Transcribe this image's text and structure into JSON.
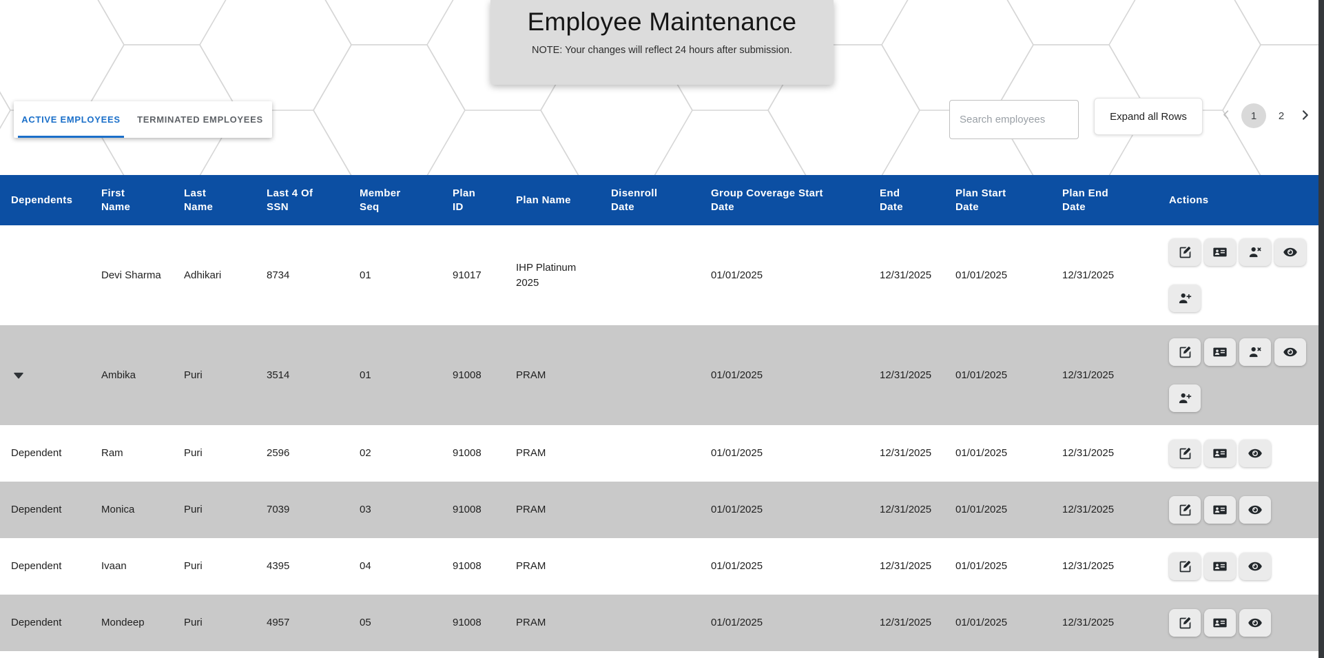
{
  "header": {
    "title": "Employee Maintenance",
    "note": "NOTE: Your changes will reflect 24 hours after submission."
  },
  "tabs": [
    {
      "label": "ACTIVE EMPLOYEES",
      "active": true
    },
    {
      "label": "TERMINATED EMPLOYEES",
      "active": false
    }
  ],
  "toolbar": {
    "search_placeholder": "Search employees",
    "expand_button_label": "Expand all Rows"
  },
  "pagination": {
    "pages": [
      "1",
      "2"
    ],
    "current_page": "1",
    "prev_icon": "chevron-left-icon",
    "next_icon": "chevron-right-icon"
  },
  "colors": {
    "header_blue": "#0c4fa3",
    "tab_active_blue": "#1a6fc9",
    "row_shade_gray": "#c9c9c9",
    "hero_card_gray": "#dcdcdc",
    "icon_dark": "#23282c",
    "scrollbar_dark": "#35383b"
  },
  "table": {
    "columns": [
      {
        "id": "dependents",
        "label": "Dependents"
      },
      {
        "id": "first_name",
        "label": "First\nName"
      },
      {
        "id": "last_name",
        "label": "Last\nName"
      },
      {
        "id": "ssn_last4",
        "label": "Last 4 Of\nSSN"
      },
      {
        "id": "member_seq",
        "label": "Member\nSeq"
      },
      {
        "id": "plan_id",
        "label": "Plan\nID"
      },
      {
        "id": "plan_name",
        "label": "Plan Name"
      },
      {
        "id": "disenroll_date",
        "label": "Disenroll\nDate"
      },
      {
        "id": "group_coverage_start_date",
        "label": "Group Coverage Start\nDate"
      },
      {
        "id": "end_date",
        "label": "End\nDate"
      },
      {
        "id": "plan_start_date",
        "label": "Plan Start\nDate"
      },
      {
        "id": "plan_end_date",
        "label": "Plan End\nDate"
      },
      {
        "id": "actions",
        "label": "Actions"
      }
    ],
    "rows": [
      {
        "kind": "employee",
        "shaded": false,
        "expanded": false,
        "cells": {
          "dependents": "",
          "first_name": "Devi Sharma",
          "last_name": "Adhikari",
          "ssn_last4": "8734",
          "member_seq": "01",
          "plan_id": "91017",
          "plan_name": "IHP Platinum 2025",
          "disenroll_date": "",
          "group_coverage_start_date": "01/01/2025",
          "end_date": "12/31/2025",
          "plan_start_date": "01/01/2025",
          "plan_end_date": "12/31/2025"
        },
        "actions": [
          "edit",
          "id-card",
          "remove-person",
          "view",
          "add-person"
        ]
      },
      {
        "kind": "employee",
        "shaded": true,
        "expanded": true,
        "cells": {
          "dependents": "",
          "first_name": "Ambika",
          "last_name": "Puri",
          "ssn_last4": "3514",
          "member_seq": "01",
          "plan_id": "91008",
          "plan_name": "PRAM",
          "disenroll_date": "",
          "group_coverage_start_date": "01/01/2025",
          "end_date": "12/31/2025",
          "plan_start_date": "01/01/2025",
          "plan_end_date": "12/31/2025"
        },
        "actions": [
          "edit",
          "id-card",
          "remove-person",
          "view",
          "add-person"
        ]
      },
      {
        "kind": "dependent",
        "shaded": false,
        "expanded": false,
        "cells": {
          "dependents": "Dependent",
          "first_name": "Ram",
          "last_name": "Puri",
          "ssn_last4": "2596",
          "member_seq": "02",
          "plan_id": "91008",
          "plan_name": "PRAM",
          "disenroll_date": "",
          "group_coverage_start_date": "01/01/2025",
          "end_date": "12/31/2025",
          "plan_start_date": "01/01/2025",
          "plan_end_date": "12/31/2025"
        },
        "actions": [
          "edit",
          "id-card",
          "view"
        ]
      },
      {
        "kind": "dependent",
        "shaded": true,
        "expanded": false,
        "cells": {
          "dependents": "Dependent",
          "first_name": "Monica",
          "last_name": "Puri",
          "ssn_last4": "7039",
          "member_seq": "03",
          "plan_id": "91008",
          "plan_name": "PRAM",
          "disenroll_date": "",
          "group_coverage_start_date": "01/01/2025",
          "end_date": "12/31/2025",
          "plan_start_date": "01/01/2025",
          "plan_end_date": "12/31/2025"
        },
        "actions": [
          "edit",
          "id-card",
          "view"
        ]
      },
      {
        "kind": "dependent",
        "shaded": false,
        "expanded": false,
        "cells": {
          "dependents": "Dependent",
          "first_name": "Ivaan",
          "last_name": "Puri",
          "ssn_last4": "4395",
          "member_seq": "04",
          "plan_id": "91008",
          "plan_name": "PRAM",
          "disenroll_date": "",
          "group_coverage_start_date": "01/01/2025",
          "end_date": "12/31/2025",
          "plan_start_date": "01/01/2025",
          "plan_end_date": "12/31/2025"
        },
        "actions": [
          "edit",
          "id-card",
          "view"
        ]
      },
      {
        "kind": "dependent",
        "shaded": true,
        "expanded": false,
        "cells": {
          "dependents": "Dependent",
          "first_name": "Mondeep",
          "last_name": "Puri",
          "ssn_last4": "4957",
          "member_seq": "05",
          "plan_id": "91008",
          "plan_name": "PRAM",
          "disenroll_date": "",
          "group_coverage_start_date": "01/01/2025",
          "end_date": "12/31/2025",
          "plan_start_date": "01/01/2025",
          "plan_end_date": "12/31/2025"
        },
        "actions": [
          "edit",
          "id-card",
          "view"
        ]
      }
    ]
  }
}
